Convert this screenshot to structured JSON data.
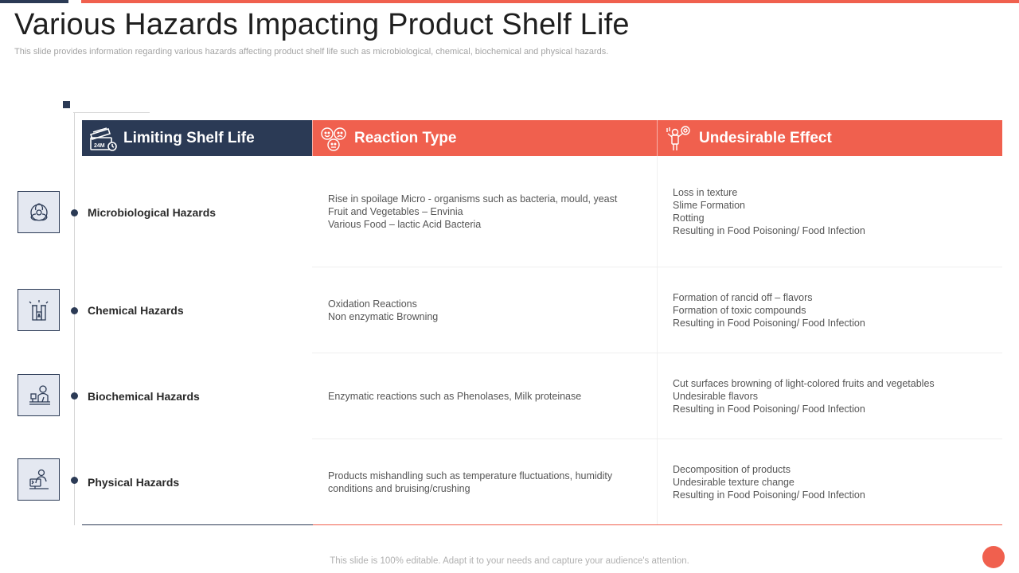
{
  "title": "Various Hazards Impacting Product Shelf Life",
  "subtitle": "This slide provides information regarding various hazards affecting product shelf life such as microbiological, chemical, biochemical and physical hazards.",
  "colors": {
    "navy": "#2b3a55",
    "coral": "#f0604e"
  },
  "headers": [
    {
      "label": "Limiting Shelf Life",
      "icon": "shelf-life-box-icon"
    },
    {
      "label": "Reaction Type",
      "icon": "faces-icon"
    },
    {
      "label": "Undesirable Effect",
      "icon": "person-effect-icon"
    }
  ],
  "rows": [
    {
      "hazard": "Microbiological Hazards",
      "icon": "biohazard-icon",
      "reaction": [
        "Rise in spoilage Micro - organisms such as bacteria, mould, yeast",
        "Fruit and Vegetables – Envinia",
        "Various Food – lactic Acid Bacteria"
      ],
      "effect": [
        "Loss in texture",
        "Slime Formation",
        "Rotting",
        "Resulting in Food Poisoning/ Food Infection"
      ]
    },
    {
      "hazard": "Chemical Hazards",
      "icon": "chemical-bottles-icon",
      "reaction": [
        "Oxidation Reactions",
        "Non enzymatic Browning"
      ],
      "effect": [
        "Formation of rancid off – flavors",
        "Formation of toxic compounds",
        "Resulting in Food Poisoning/ Food Infection"
      ]
    },
    {
      "hazard": "Biochemical Hazards",
      "icon": "lab-scientist-icon",
      "reaction": [
        "Enzymatic reactions such as Phenolases, Milk proteinase"
      ],
      "effect": [
        "Cut surfaces browning  of light-colored fruits and vegetables",
        "Undesirable flavors",
        "Resulting in Food Poisoning/ Food Infection"
      ]
    },
    {
      "hazard": "Physical Hazards",
      "icon": "person-at-computer-icon",
      "reaction": [
        "Products mishandling such as temperature fluctuations, humidity",
        "conditions and bruising/crushing"
      ],
      "effect": [
        "Decomposition of products",
        "Undesirable texture change",
        "Resulting in Food Poisoning/ Food Infection"
      ]
    }
  ],
  "footer": "This slide is 100% editable. Adapt it to your needs and capture your audience's attention.",
  "header_badge_text": "24M"
}
